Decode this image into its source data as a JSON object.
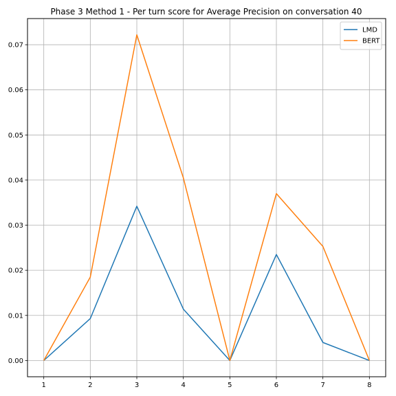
{
  "chart_data": {
    "type": "line",
    "title": "Phase 3 Method 1 - Per turn score for Average Precision on conversation 40",
    "xlabel": "",
    "ylabel": "",
    "x": [
      1,
      2,
      3,
      4,
      5,
      6,
      7,
      8
    ],
    "xticks": [
      "1",
      "2",
      "3",
      "4",
      "5",
      "6",
      "7",
      "8"
    ],
    "yticks": [
      "0.00",
      "0.01",
      "0.02",
      "0.03",
      "0.04",
      "0.05",
      "0.06",
      "0.07"
    ],
    "xlim": [
      0.65,
      8.35
    ],
    "ylim": [
      -0.0036,
      0.0758
    ],
    "grid": true,
    "legend_position": "top-right",
    "series": [
      {
        "name": "LMD",
        "color": "#1f77b4",
        "values": [
          0.0,
          0.0093,
          0.0342,
          0.0114,
          0.0,
          0.0235,
          0.004,
          0.0
        ]
      },
      {
        "name": "BERT",
        "color": "#ff7f0e",
        "values": [
          0.0,
          0.0185,
          0.0722,
          0.0405,
          0.0,
          0.037,
          0.0253,
          0.0
        ]
      }
    ]
  }
}
